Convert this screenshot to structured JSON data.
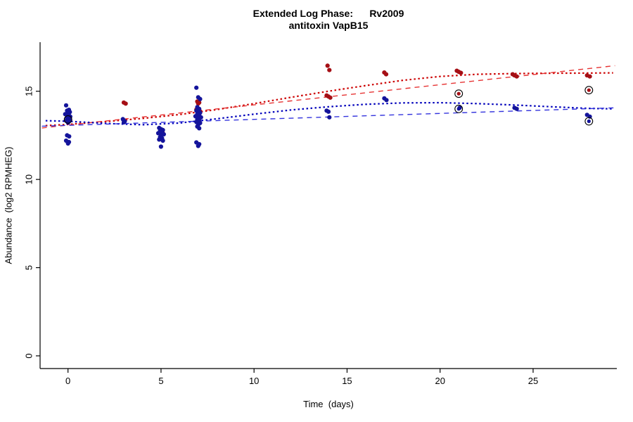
{
  "chart_data": {
    "type": "scatter",
    "title": "Extended Log Phase:      Rv2009",
    "subtitle": "antitoxin VapB15",
    "xlabel": "Time  (days)",
    "ylabel": "Abundance  (log2 RPMHEG)",
    "xlim": [
      -1.5,
      29.5
    ],
    "ylim": [
      -0.72,
      17.78
    ],
    "xticks": [
      0,
      5,
      10,
      15,
      20,
      25
    ],
    "yticks": [
      0,
      5,
      10,
      15
    ],
    "grid": false,
    "legend": "none",
    "colors": {
      "red_points": "#a50f15",
      "blue_points": "#14149b",
      "red_smooth": "#cc0000",
      "red_linear": "#e63333",
      "blue_smooth": "#0000bb",
      "blue_linear": "#3333dd",
      "flag_ring": "#000000"
    },
    "series": [
      {
        "name": "red-points",
        "color": "#a50f15",
        "points": [
          [
            0.08,
            13.36
          ],
          [
            0.0,
            13.3
          ],
          [
            3.0,
            14.36
          ],
          [
            3.1,
            14.3
          ],
          [
            5.0,
            12.72
          ],
          [
            5.08,
            12.66
          ],
          [
            6.95,
            14.42
          ],
          [
            7.05,
            14.36
          ],
          [
            7.0,
            14.3
          ],
          [
            6.9,
            13.96
          ],
          [
            7.1,
            13.86
          ],
          [
            7.0,
            13.76
          ],
          [
            6.95,
            13.66
          ],
          [
            7.05,
            13.56
          ],
          [
            7.0,
            13.46
          ],
          [
            13.95,
            16.45
          ],
          [
            14.05,
            16.2
          ],
          [
            13.9,
            14.76
          ],
          [
            14.0,
            14.7
          ],
          [
            14.1,
            14.64
          ],
          [
            17.0,
            16.06
          ],
          [
            17.1,
            15.96
          ],
          [
            20.9,
            16.16
          ],
          [
            21.0,
            16.1
          ],
          [
            21.12,
            16.04
          ],
          [
            23.9,
            15.96
          ],
          [
            24.0,
            15.9
          ],
          [
            24.12,
            15.84
          ],
          [
            27.9,
            15.9
          ],
          [
            28.05,
            15.84
          ]
        ]
      },
      {
        "name": "blue-points",
        "color": "#14149b",
        "points": [
          [
            -0.1,
            14.2
          ],
          [
            0.05,
            13.95
          ],
          [
            -0.05,
            13.9
          ],
          [
            0.1,
            13.82
          ],
          [
            0.0,
            13.78
          ],
          [
            -0.15,
            13.7
          ],
          [
            0.05,
            13.64
          ],
          [
            0.12,
            13.56
          ],
          [
            -0.06,
            13.5
          ],
          [
            0.02,
            13.44
          ],
          [
            0.1,
            13.38
          ],
          [
            -0.1,
            13.33
          ],
          [
            0.04,
            13.27
          ],
          [
            0.0,
            13.22
          ],
          [
            -0.05,
            12.5
          ],
          [
            0.06,
            12.44
          ],
          [
            -0.1,
            12.2
          ],
          [
            0.05,
            12.12
          ],
          [
            0.0,
            12.04
          ],
          [
            2.95,
            13.42
          ],
          [
            3.05,
            13.3
          ],
          [
            3.0,
            13.24
          ],
          [
            4.9,
            12.92
          ],
          [
            5.0,
            12.85
          ],
          [
            5.1,
            12.8
          ],
          [
            4.95,
            12.74
          ],
          [
            5.05,
            12.7
          ],
          [
            4.85,
            12.62
          ],
          [
            5.15,
            12.56
          ],
          [
            5.0,
            12.5
          ],
          [
            4.95,
            12.4
          ],
          [
            5.05,
            12.34
          ],
          [
            4.9,
            12.26
          ],
          [
            5.1,
            12.2
          ],
          [
            5.0,
            11.86
          ],
          [
            6.9,
            15.2
          ],
          [
            7.0,
            14.66
          ],
          [
            7.1,
            14.56
          ],
          [
            6.95,
            14.1
          ],
          [
            7.05,
            14.0
          ],
          [
            6.9,
            13.9
          ],
          [
            7.0,
            13.84
          ],
          [
            7.1,
            13.78
          ],
          [
            6.95,
            13.7
          ],
          [
            7.05,
            13.64
          ],
          [
            6.85,
            13.58
          ],
          [
            7.15,
            13.52
          ],
          [
            7.0,
            13.46
          ],
          [
            6.95,
            13.4
          ],
          [
            7.05,
            13.34
          ],
          [
            6.9,
            13.26
          ],
          [
            7.1,
            13.2
          ],
          [
            7.0,
            13.1
          ],
          [
            6.95,
            13.0
          ],
          [
            7.05,
            12.9
          ],
          [
            6.9,
            12.1
          ],
          [
            7.05,
            12.0
          ],
          [
            7.0,
            11.9
          ],
          [
            13.9,
            13.9
          ],
          [
            14.0,
            13.84
          ],
          [
            14.05,
            13.52
          ],
          [
            17.0,
            14.6
          ],
          [
            17.12,
            14.5
          ],
          [
            21.05,
            14.06
          ],
          [
            24.0,
            14.06
          ],
          [
            24.12,
            14.0
          ],
          [
            27.9,
            13.66
          ],
          [
            28.05,
            13.56
          ]
        ]
      }
    ],
    "flagged_points": [
      {
        "x": 0.0,
        "y": 13.4,
        "color": "#14149b"
      },
      {
        "x": 21.0,
        "y": 14.86,
        "color": "#a50f15"
      },
      {
        "x": 21.0,
        "y": 14.0,
        "color": "#14149b"
      },
      {
        "x": 28.0,
        "y": 15.06,
        "color": "#a50f15"
      },
      {
        "x": 28.0,
        "y": 13.3,
        "color": "#14149b"
      }
    ],
    "lines": [
      {
        "name": "red-smooth-fit",
        "color": "#cc0000",
        "width": 2.2,
        "dash": "2.5,3.5",
        "points": [
          [
            -1.2,
            13.05
          ],
          [
            0,
            13.12
          ],
          [
            2,
            13.28
          ],
          [
            4,
            13.46
          ],
          [
            6,
            13.68
          ],
          [
            8,
            13.96
          ],
          [
            10,
            14.3
          ],
          [
            12,
            14.66
          ],
          [
            14,
            15.0
          ],
          [
            16,
            15.32
          ],
          [
            18,
            15.62
          ],
          [
            20,
            15.84
          ],
          [
            22,
            15.96
          ],
          [
            24,
            16.0
          ],
          [
            26,
            16.02
          ],
          [
            28,
            16.03
          ],
          [
            29.3,
            16.04
          ]
        ]
      },
      {
        "name": "red-linear-fit",
        "color": "#e63333",
        "width": 1.4,
        "dash": "7,6",
        "points": [
          [
            -1.4,
            12.92
          ],
          [
            29.4,
            16.45
          ]
        ]
      },
      {
        "name": "blue-smooth-fit",
        "color": "#0000bb",
        "width": 2.2,
        "dash": "2.5,3.5",
        "points": [
          [
            -1.2,
            13.33
          ],
          [
            0,
            13.3
          ],
          [
            2,
            13.18
          ],
          [
            4,
            13.1
          ],
          [
            6,
            13.2
          ],
          [
            8,
            13.44
          ],
          [
            10,
            13.7
          ],
          [
            12,
            13.94
          ],
          [
            14,
            14.12
          ],
          [
            16,
            14.26
          ],
          [
            18,
            14.34
          ],
          [
            20,
            14.35
          ],
          [
            22,
            14.3
          ],
          [
            24,
            14.22
          ],
          [
            26,
            14.12
          ],
          [
            28,
            14.03
          ],
          [
            29.3,
            14.0
          ]
        ]
      },
      {
        "name": "blue-linear-fit",
        "color": "#3333dd",
        "width": 1.4,
        "dash": "7,6",
        "points": [
          [
            -1.4,
            13.02
          ],
          [
            29.4,
            14.06
          ]
        ]
      }
    ]
  }
}
